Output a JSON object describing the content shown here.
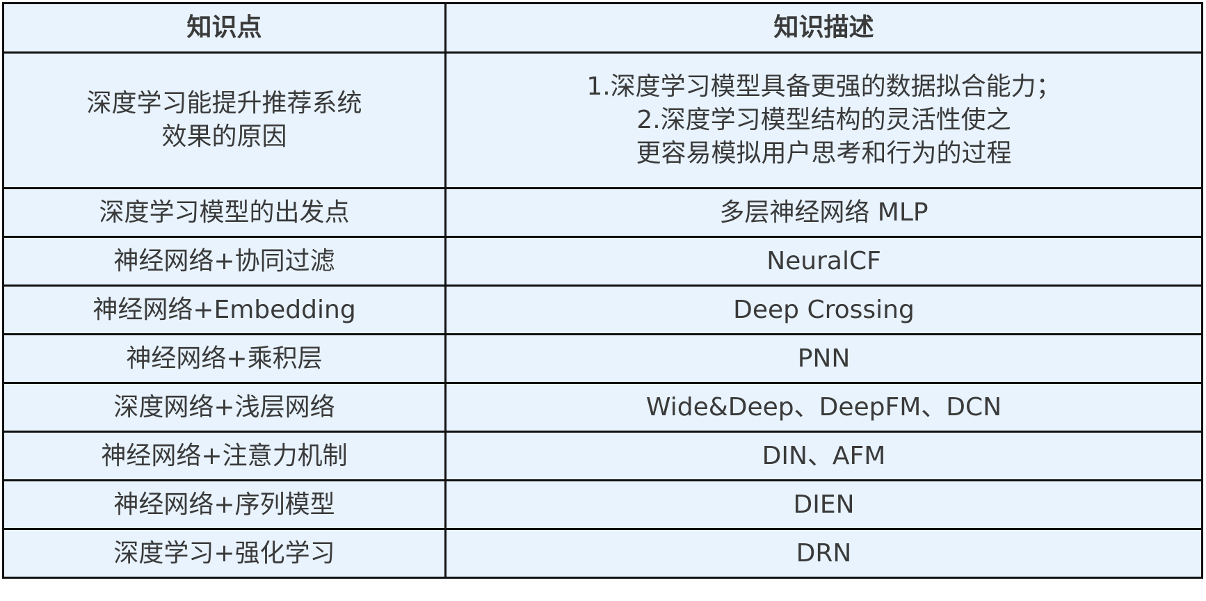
{
  "table": {
    "headers": [
      "知识点",
      "知识描述"
    ],
    "rows": [
      {
        "point": [
          "深度学习能提升推荐系统",
          "效果的原因"
        ],
        "desc": [
          "1.深度学习模型具备更强的数据拟合能力；",
          "2.深度学习模型结构的灵活性使之",
          "更容易模拟用户思考和行为的过程"
        ]
      },
      {
        "point": [
          "深度学习模型的出发点"
        ],
        "desc": [
          "多层神经网络 MLP"
        ]
      },
      {
        "point": [
          "神经网络+协同过滤"
        ],
        "desc": [
          "NeuralCF"
        ]
      },
      {
        "point": [
          "神经网络+Embedding"
        ],
        "desc": [
          "Deep Crossing"
        ]
      },
      {
        "point": [
          "神经网络+乘积层"
        ],
        "desc": [
          "PNN"
        ]
      },
      {
        "point": [
          "深度网络+浅层网络"
        ],
        "desc": [
          "Wide&Deep、DeepFM、DCN"
        ]
      },
      {
        "point": [
          "神经网络+注意力机制"
        ],
        "desc": [
          "DIN、AFM"
        ]
      },
      {
        "point": [
          "神经网络+序列模型"
        ],
        "desc": [
          "DIEN"
        ]
      },
      {
        "point": [
          "深度学习+强化学习"
        ],
        "desc": [
          "DRN"
        ]
      }
    ]
  },
  "colors": {
    "cell_background": "#e8f3fd",
    "border": "#111111",
    "text": "#3a3a3a"
  }
}
